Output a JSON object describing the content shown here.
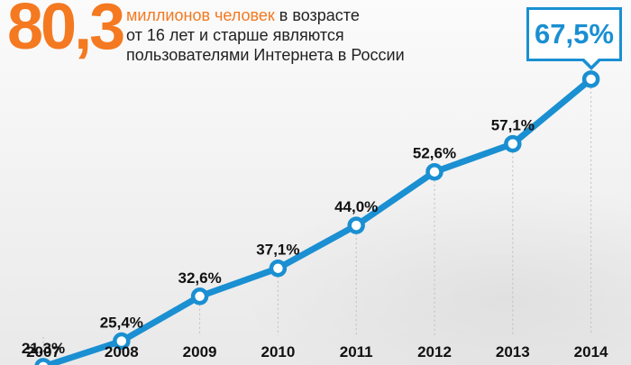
{
  "header": {
    "big_number": "80,3",
    "text_accent": "миллионов человек",
    "text_line1_rest": " в возрасте",
    "text_line2": "от 16 лет и старше являются",
    "text_line3": "пользователями Интернета в России"
  },
  "callout": {
    "value": "67,5%"
  },
  "colors": {
    "accent": "#f47920",
    "line": "#1a8fd2",
    "text": "#111111"
  },
  "chart_data": {
    "type": "line",
    "categories": [
      "2007",
      "2008",
      "2009",
      "2010",
      "2011",
      "2012",
      "2013",
      "2014"
    ],
    "values": [
      21.3,
      25.4,
      32.6,
      37.1,
      44.0,
      52.6,
      57.1,
      67.5
    ],
    "labels": [
      "21,3%",
      "25,4%",
      "32,6%",
      "37,1%",
      "44,0%",
      "52,6%",
      "57,1%",
      ""
    ],
    "unit": "%",
    "title": "",
    "xlabel": "",
    "ylabel": "",
    "grid": "vertical dashed drop lines",
    "legend": "none"
  }
}
